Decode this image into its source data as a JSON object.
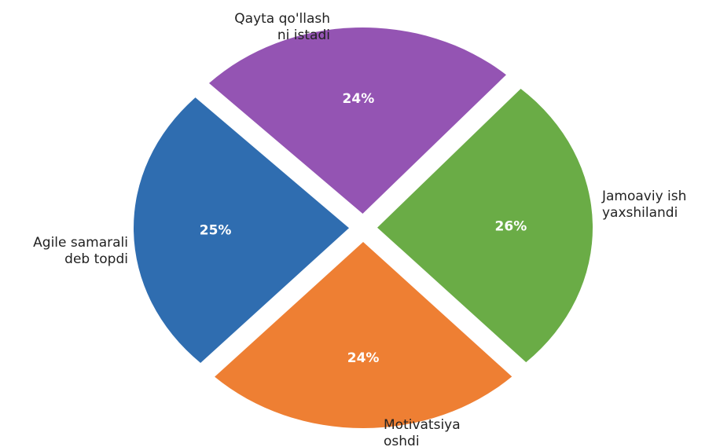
{
  "chart_data": {
    "type": "pie",
    "categories": [
      "Agile samarali deb topdi",
      "Motivatsiya oshdi",
      "Jamoaviy ish yaxshilandi",
      "Qayta qo'llash ni istadi"
    ],
    "values": [
      25,
      24,
      26,
      24
    ],
    "slices": [
      {
        "label_lines": [
          "Agile samarali",
          "deb topdi"
        ],
        "value": 25,
        "pct_text": "25%",
        "color": "#2f6db0"
      },
      {
        "label_lines": [
          "Motivatsiya",
          "oshdi"
        ],
        "value": 24,
        "pct_text": "24%",
        "color": "#ee7f33"
      },
      {
        "label_lines": [
          "Jamoaviy ish",
          "yaxshilandi"
        ],
        "value": 26,
        "pct_text": "26%",
        "color": "#6aac46"
      },
      {
        "label_lines": [
          "Qayta qo'llash",
          "ni istadi"
        ],
        "value": 24,
        "pct_text": "24%",
        "color": "#9454b3"
      }
    ],
    "exploded": true,
    "title": "",
    "legend": "none"
  }
}
